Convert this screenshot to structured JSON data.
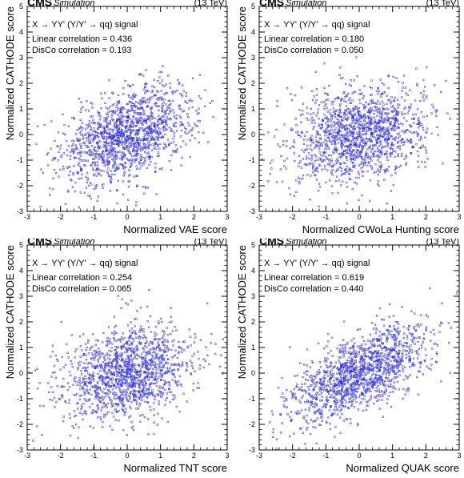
{
  "experiment": "CMS",
  "status_label": "Simulation",
  "energy_label": "(13 TeV)",
  "signal_label": "X → YY' (Y/Y' → qq) signal",
  "colors": {
    "points": "#3030e0",
    "frame": "#000000",
    "text": "#000000"
  },
  "chart_data": [
    {
      "type": "scatter",
      "xlabel": "Normalized VAE score",
      "ylabel": "Normalized CATHODE score",
      "xlim": [
        -3,
        3
      ],
      "ylim": [
        -3,
        5
      ],
      "xticks": [
        -3,
        -2,
        -1,
        0,
        1,
        2,
        3
      ],
      "yticks": [
        -3,
        -2,
        -1,
        0,
        1,
        2,
        3,
        4,
        5
      ],
      "linear_correlation_text": "Linear correlation = 0.436",
      "disco_correlation_text": "DisCo correlation = 0.193",
      "linear_correlation": 0.436,
      "disco_correlation": 0.193,
      "n_points": 1400,
      "grid": false
    },
    {
      "type": "scatter",
      "xlabel": "Normalized CWoLa Hunting score",
      "ylabel": "Normalized CATHODE score",
      "xlim": [
        -3,
        3
      ],
      "ylim": [
        -3,
        5
      ],
      "xticks": [
        -3,
        -2,
        -1,
        0,
        1,
        2,
        3
      ],
      "yticks": [
        -3,
        -2,
        -1,
        0,
        1,
        2,
        3,
        4,
        5
      ],
      "linear_correlation_text": "Linear correlation = 0.180",
      "disco_correlation_text": "DisCo correlation = 0.050",
      "linear_correlation": 0.18,
      "disco_correlation": 0.05,
      "n_points": 1400,
      "grid": false
    },
    {
      "type": "scatter",
      "xlabel": "Normalized TNT score",
      "ylabel": "Normalized CATHODE score",
      "xlim": [
        -3,
        3
      ],
      "ylim": [
        -3,
        5
      ],
      "xticks": [
        -3,
        -2,
        -1,
        0,
        1,
        2,
        3
      ],
      "yticks": [
        -3,
        -2,
        -1,
        0,
        1,
        2,
        3,
        4,
        5
      ],
      "linear_correlation_text": "Linear correlation = 0.254",
      "disco_correlation_text": "DisCo correlation = 0.065",
      "linear_correlation": 0.254,
      "disco_correlation": 0.065,
      "n_points": 1400,
      "grid": false
    },
    {
      "type": "scatter",
      "xlabel": "Normalized QUAK score",
      "ylabel": "Normalized CATHODE score",
      "xlim": [
        -3,
        3
      ],
      "ylim": [
        -3,
        5
      ],
      "xticks": [
        -3,
        -2,
        -1,
        0,
        1,
        2,
        3
      ],
      "yticks": [
        -3,
        -2,
        -1,
        0,
        1,
        2,
        3,
        4,
        5
      ],
      "linear_correlation_text": "Linear correlation = 0.619",
      "disco_correlation_text": "DisCo correlation = 0.440",
      "linear_correlation": 0.619,
      "disco_correlation": 0.44,
      "n_points": 1400,
      "grid": false
    }
  ]
}
